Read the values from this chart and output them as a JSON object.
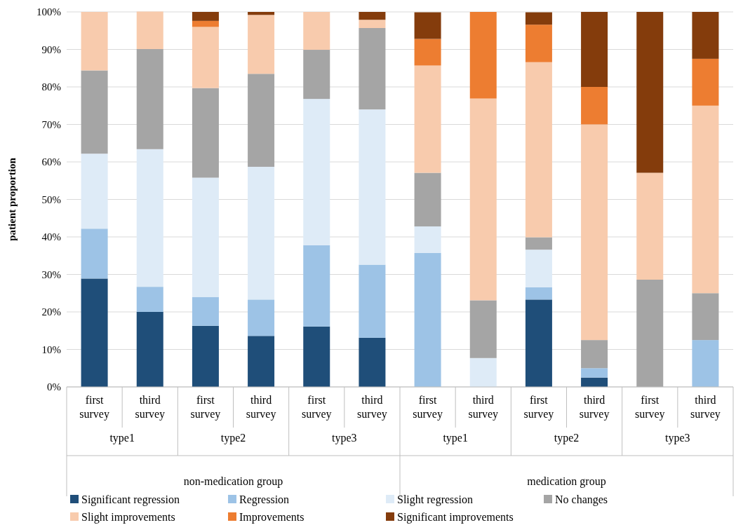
{
  "chart_data": {
    "type": "bar",
    "stacked": true,
    "ylabel": "patient proportion",
    "categories": [
      "first survey",
      "third survey",
      "first survey",
      "third survey",
      "first survey",
      "third survey",
      "first survey",
      "third survey",
      "first survey",
      "third survey",
      "first survey",
      "third survey"
    ],
    "annotations": [
      "type1",
      "type2",
      "type3",
      "type1",
      "type2",
      "type3",
      "non-medication group",
      "medication group"
    ],
    "series": [
      {
        "name": "Significant regression",
        "color": "#1f4e79",
        "values": [
          28.9,
          20,
          16.3,
          13.6,
          16.1,
          13.1,
          0,
          0,
          23.3,
          2.5,
          0,
          0
        ]
      },
      {
        "name": "Regression",
        "color": "#9dc3e6",
        "values": [
          13.3,
          6.7,
          7.7,
          9.7,
          21.7,
          19.5,
          35.7,
          0,
          3.3,
          2.5,
          0,
          12.5
        ]
      },
      {
        "name": "Slight regression",
        "color": "#deebf7",
        "values": [
          20,
          36.7,
          31.8,
          35.4,
          39,
          41.4,
          7.1,
          7.7,
          10,
          0,
          0,
          0
        ]
      },
      {
        "name": "No changes",
        "color": "#a5a5a5",
        "values": [
          22.2,
          26.7,
          23.9,
          24.8,
          13.1,
          21.7,
          14.3,
          15.4,
          3.3,
          7.5,
          28.6,
          12.5
        ]
      },
      {
        "name": "Slight improvements",
        "color": "#f8cbad",
        "values": [
          15.6,
          10,
          16.3,
          15.7,
          10.1,
          2.2,
          28.6,
          53.8,
          46.7,
          57.5,
          28.5,
          50
        ]
      },
      {
        "name": "Improvements",
        "color": "#ed7d31",
        "values": [
          0,
          0,
          1.6,
          0,
          0,
          0,
          7.1,
          23.1,
          10,
          10,
          0,
          12.5
        ]
      },
      {
        "name": "Significant improvements",
        "color": "#843c0c",
        "values": [
          0,
          0,
          2.4,
          0.8,
          0,
          2.1,
          7.1,
          0,
          3.3,
          20,
          42.9,
          12.5
        ]
      }
    ],
    "ylim": [
      0,
      100
    ],
    "yticks": [
      {
        "value": 0,
        "label": "0%"
      },
      {
        "value": 10,
        "label": "10%"
      },
      {
        "value": 20,
        "label": "20%"
      },
      {
        "value": 30,
        "label": "30%"
      },
      {
        "value": 40,
        "label": "40%"
      },
      {
        "value": 50,
        "label": "50%"
      },
      {
        "value": 60,
        "label": "60%"
      },
      {
        "value": 70,
        "label": "70%"
      },
      {
        "value": 80,
        "label": "80%"
      },
      {
        "value": 90,
        "label": "90%"
      },
      {
        "value": 100,
        "label": "100%"
      }
    ],
    "grid": "y",
    "legend": "bottom"
  }
}
